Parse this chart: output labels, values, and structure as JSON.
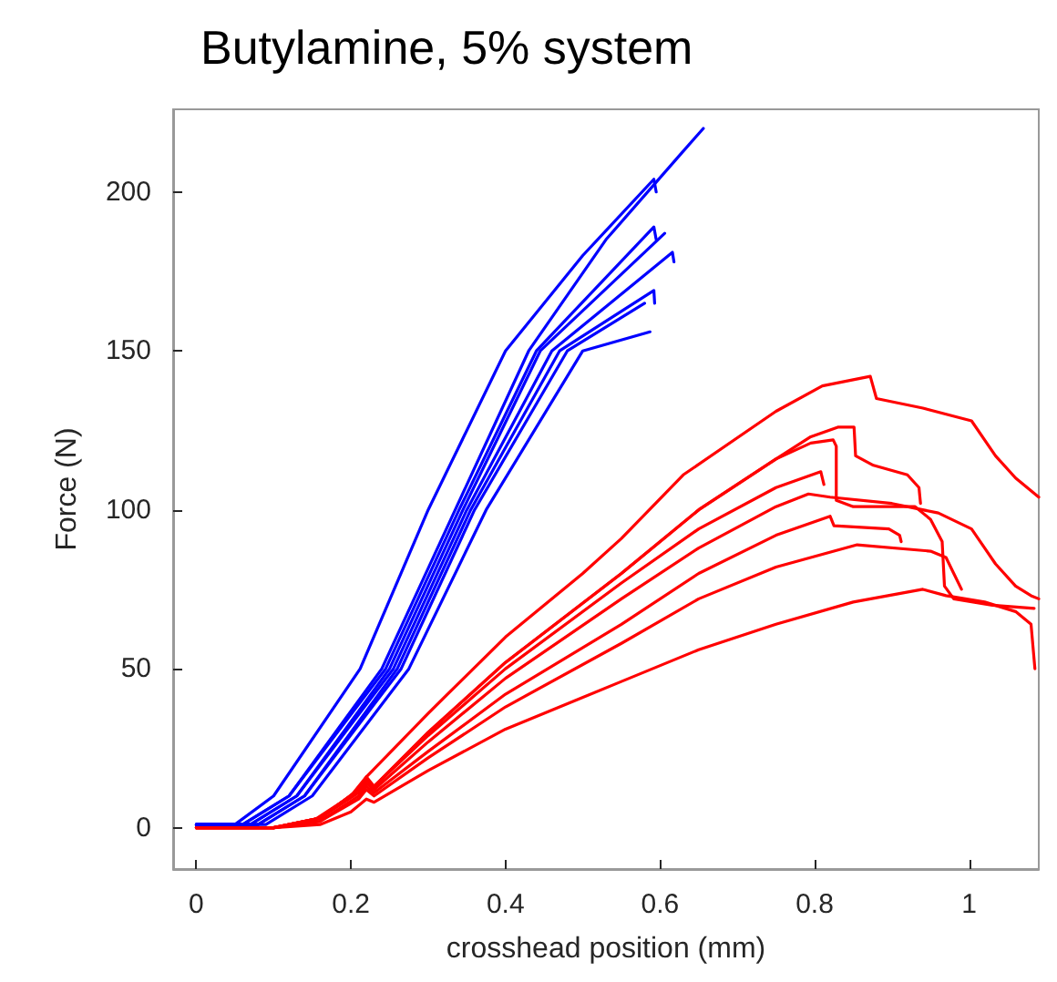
{
  "chart_data": {
    "type": "line",
    "title": "Butylamine, 5% system",
    "xlabel": "crosshead position (mm)",
    "ylabel": "Force (N)",
    "xlim": [
      -0.03,
      1.09
    ],
    "ylim": [
      -13,
      226
    ],
    "xticks": [
      0,
      0.2,
      0.4,
      0.6,
      0.8,
      1
    ],
    "yticks": [
      0,
      50,
      100,
      150,
      200
    ],
    "grid": false,
    "marker": "none",
    "line_style": "solid",
    "series": [
      {
        "color": "#0000ff",
        "x": [
          0,
          0.05,
          0.1,
          0.212,
          0.3,
          0.4,
          0.5,
          0.592,
          0.595
        ],
        "values": [
          1,
          1,
          10,
          50,
          100,
          150,
          180,
          204,
          200
        ]
      },
      {
        "color": "#0000ff",
        "x": [
          0,
          0.06,
          0.12,
          0.24,
          0.335,
          0.43,
          0.53,
          0.627,
          0.656
        ],
        "values": [
          1,
          1,
          10,
          50,
          100,
          150,
          185,
          212,
          220
        ]
      },
      {
        "color": "#0000ff",
        "x": [
          0,
          0.06,
          0.12,
          0.245,
          0.34,
          0.44,
          0.592,
          0.595
        ],
        "values": [
          1,
          1,
          10,
          50,
          100,
          150,
          189,
          185
        ]
      },
      {
        "color": "#0000ff",
        "x": [
          0,
          0.07,
          0.13,
          0.25,
          0.345,
          0.445,
          0.606
        ],
        "values": [
          1,
          1,
          10,
          50,
          100,
          150,
          187
        ]
      },
      {
        "color": "#0000ff",
        "x": [
          0,
          0.07,
          0.13,
          0.255,
          0.35,
          0.46,
          0.616,
          0.618
        ],
        "values": [
          1,
          1,
          10,
          50,
          100,
          150,
          181,
          178
        ]
      },
      {
        "color": "#0000ff",
        "x": [
          0,
          0.08,
          0.14,
          0.26,
          0.355,
          0.47,
          0.592,
          0.593
        ],
        "values": [
          1,
          1,
          10,
          50,
          100,
          150,
          169,
          165
        ]
      },
      {
        "color": "#0000ff",
        "x": [
          0,
          0.08,
          0.14,
          0.265,
          0.36,
          0.48,
          0.58
        ],
        "values": [
          1,
          1,
          10,
          50,
          100,
          150,
          165
        ]
      },
      {
        "color": "#0000ff",
        "x": [
          0,
          0.09,
          0.15,
          0.275,
          0.375,
          0.5,
          0.587
        ],
        "values": [
          1,
          1,
          10,
          50,
          100,
          150,
          156
        ]
      },
      {
        "color": "#ff0000",
        "x": [
          0,
          0.1,
          0.15,
          0.2,
          0.22,
          0.3,
          0.4,
          0.5,
          0.55,
          0.63,
          0.75,
          0.81,
          0.872,
          0.88,
          0.94,
          1.003,
          1.034,
          1.06,
          1.09
        ],
        "values": [
          0,
          0,
          2,
          10,
          16,
          36,
          60,
          80,
          91,
          111,
          131,
          139,
          142,
          135,
          132,
          128,
          117,
          110,
          104
        ]
      },
      {
        "color": "#ff0000",
        "x": [
          0,
          0.1,
          0.16,
          0.21,
          0.22,
          0.23,
          0.3,
          0.4,
          0.55,
          0.65,
          0.75,
          0.795,
          0.83,
          0.851,
          0.853,
          0.876,
          0.92,
          0.935,
          0.937
        ],
        "values": [
          0,
          0,
          3,
          12,
          15,
          13,
          30,
          52,
          80,
          100,
          116,
          123,
          126,
          126,
          117,
          114,
          111,
          107,
          102
        ]
      },
      {
        "color": "#ff0000",
        "x": [
          0,
          0.1,
          0.16,
          0.21,
          0.22,
          0.23,
          0.3,
          0.4,
          0.55,
          0.65,
          0.75,
          0.795,
          0.824,
          0.828,
          0.828,
          0.85,
          0.93,
          0.95,
          0.965,
          0.968,
          0.98,
          1.03,
          1.084
        ],
        "values": [
          0,
          0,
          3,
          12,
          16,
          13,
          30,
          52,
          80,
          100,
          116,
          121,
          122,
          120,
          103,
          101,
          101,
          97,
          90,
          76,
          72,
          70,
          69
        ]
      },
      {
        "color": "#ff0000",
        "x": [
          0,
          0.1,
          0.16,
          0.21,
          0.22,
          0.23,
          0.3,
          0.4,
          0.55,
          0.65,
          0.75,
          0.808,
          0.812
        ],
        "values": [
          0,
          0,
          3,
          12,
          15,
          13,
          29,
          50,
          77,
          94,
          107,
          112,
          108
        ]
      },
      {
        "color": "#ff0000",
        "x": [
          0,
          0.1,
          0.16,
          0.21,
          0.22,
          0.23,
          0.3,
          0.4,
          0.55,
          0.65,
          0.75,
          0.792,
          0.82,
          0.9,
          0.96,
          1.003,
          1.02,
          1.034,
          1.06,
          1.08,
          1.09
        ],
        "values": [
          0,
          0,
          3,
          11,
          14,
          12,
          27,
          47,
          72,
          88,
          101,
          105,
          104,
          102,
          99,
          94,
          88,
          83,
          76,
          73,
          72
        ]
      },
      {
        "color": "#ff0000",
        "x": [
          0,
          0.1,
          0.16,
          0.21,
          0.22,
          0.23,
          0.3,
          0.4,
          0.55,
          0.65,
          0.75,
          0.82,
          0.825,
          0.896,
          0.91,
          0.912
        ],
        "values": [
          0,
          0,
          2,
          10,
          13,
          11,
          24,
          42,
          64,
          80,
          92,
          98,
          95,
          94,
          92,
          90
        ]
      },
      {
        "color": "#ff0000",
        "x": [
          0,
          0.1,
          0.16,
          0.21,
          0.22,
          0.23,
          0.3,
          0.4,
          0.55,
          0.65,
          0.75,
          0.855,
          0.95,
          0.97,
          0.98,
          0.99
        ],
        "values": [
          0,
          0,
          2,
          9,
          12,
          10,
          22,
          38,
          58,
          72,
          82,
          89,
          87,
          85,
          80,
          75
        ]
      },
      {
        "color": "#ff0000",
        "x": [
          0,
          0.1,
          0.16,
          0.2,
          0.22,
          0.23,
          0.3,
          0.4,
          0.55,
          0.65,
          0.75,
          0.85,
          0.94,
          0.97,
          1.02,
          1.06,
          1.08,
          1.085
        ],
        "values": [
          0,
          0,
          1,
          5,
          9,
          8,
          18,
          31,
          46,
          56,
          64,
          71,
          75,
          73,
          71,
          68,
          64,
          50
        ]
      }
    ]
  }
}
